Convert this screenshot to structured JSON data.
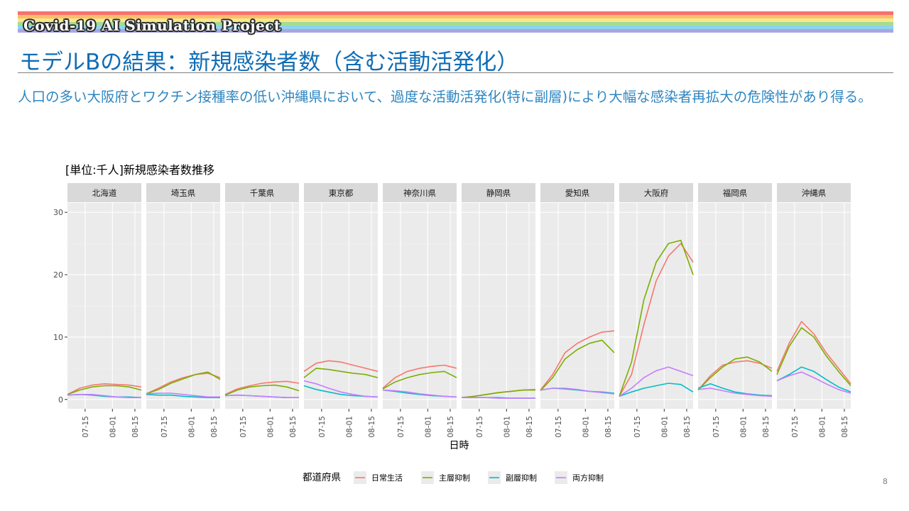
{
  "header": {
    "project_name": "Covid-19 AI Simulation Project",
    "rainbow_colors": [
      "#f8716b",
      "#fbbf6f",
      "#f8e88a",
      "#a6dc93",
      "#8fd3ec",
      "#a7a6e6"
    ]
  },
  "slide": {
    "title": "モデルBの結果：新規感染者数（含む活動活発化）",
    "description": "人口の多い大阪府とワクチン接種率の低い沖縄県において、過度な活動活発化(特に副層)により大幅な感染者再拡大の危険性があり得る。",
    "page_number": "8",
    "title_color": "#0f6db5",
    "text_color": "#2e86c1"
  },
  "chart_data": {
    "type": "line",
    "title": "[単位:千人]新規感染者数推移",
    "xlabel": "日時",
    "ylabel": "",
    "y_ticks": [
      0,
      10,
      20,
      30
    ],
    "ylim": [
      -1.5,
      31.5
    ],
    "x_ticks": [
      "07-15",
      "08-01",
      "08-15"
    ],
    "x_range": [
      "07-04",
      "08-19"
    ],
    "legend_title": "都道府県",
    "legend_position": "bottom",
    "grid": true,
    "series_colors": {
      "日常生活": "#f8766d",
      "主層抑制": "#7cae00",
      "副層抑制": "#00bfc4",
      "両方抑制": "#c77cff"
    },
    "panels": [
      {
        "name": "北海道",
        "series": [
          {
            "name": "日常生活",
            "values": [
              0.8,
              1.8,
              2.3,
              2.5,
              2.4,
              2.3,
              2.0
            ]
          },
          {
            "name": "主層抑制",
            "values": [
              0.8,
              1.5,
              2.0,
              2.2,
              2.2,
              2.0,
              1.5
            ]
          },
          {
            "name": "副層抑制",
            "values": [
              0.7,
              0.8,
              0.7,
              0.5,
              0.4,
              0.4,
              0.3
            ]
          },
          {
            "name": "両方抑制",
            "values": [
              0.7,
              0.8,
              0.8,
              0.6,
              0.4,
              0.3,
              0.3
            ]
          }
        ]
      },
      {
        "name": "埼玉県",
        "series": [
          {
            "name": "日常生活",
            "values": [
              0.9,
              1.8,
              2.8,
              3.5,
              4.0,
              4.2,
              3.5
            ]
          },
          {
            "name": "主層抑制",
            "values": [
              0.9,
              1.6,
              2.6,
              3.3,
              4.0,
              4.4,
              3.2
            ]
          },
          {
            "name": "副層抑制",
            "values": [
              0.8,
              0.7,
              0.7,
              0.5,
              0.4,
              0.3,
              0.3
            ]
          },
          {
            "name": "両方抑制",
            "values": [
              0.9,
              1.0,
              1.0,
              0.8,
              0.6,
              0.4,
              0.4
            ]
          }
        ]
      },
      {
        "name": "千葉県",
        "series": [
          {
            "name": "日常生活",
            "values": [
              0.8,
              1.7,
              2.2,
              2.6,
              2.8,
              2.9,
              2.6
            ]
          },
          {
            "name": "主層抑制",
            "values": [
              0.7,
              1.5,
              2.0,
              2.2,
              2.3,
              2.0,
              1.4
            ]
          },
          {
            "name": "副層抑制",
            "values": [
              0.6,
              0.7,
              0.6,
              0.5,
              0.4,
              0.3,
              0.3
            ]
          },
          {
            "name": "両方抑制",
            "values": [
              0.6,
              0.7,
              0.6,
              0.5,
              0.4,
              0.3,
              0.3
            ]
          }
        ]
      },
      {
        "name": "東京都",
        "series": [
          {
            "name": "日常生活",
            "values": [
              4.5,
              5.8,
              6.2,
              6.0,
              5.5,
              5.0,
              4.5
            ]
          },
          {
            "name": "主層抑制",
            "values": [
              3.5,
              5.0,
              4.8,
              4.5,
              4.2,
              4.0,
              3.5
            ]
          },
          {
            "name": "副層抑制",
            "values": [
              2.2,
              1.6,
              1.2,
              0.8,
              0.6,
              0.5,
              0.4
            ]
          },
          {
            "name": "両方抑制",
            "values": [
              3.0,
              2.5,
              1.8,
              1.2,
              0.8,
              0.5,
              0.4
            ]
          }
        ]
      },
      {
        "name": "神奈川県",
        "series": [
          {
            "name": "日常生活",
            "values": [
              1.8,
              3.5,
              4.5,
              5.0,
              5.3,
              5.5,
              5.0
            ]
          },
          {
            "name": "主層抑制",
            "values": [
              1.7,
              2.8,
              3.5,
              4.0,
              4.3,
              4.5,
              3.5
            ]
          },
          {
            "name": "副層抑制",
            "values": [
              1.5,
              1.3,
              1.0,
              0.8,
              0.6,
              0.5,
              0.4
            ]
          },
          {
            "name": "両方抑制",
            "values": [
              1.5,
              1.4,
              1.2,
              0.9,
              0.7,
              0.5,
              0.4
            ]
          }
        ]
      },
      {
        "name": "静岡県",
        "series": [
          {
            "name": "日常生活",
            "values": [
              0.3,
              0.5,
              0.8,
              1.1,
              1.3,
              1.5,
              1.6
            ]
          },
          {
            "name": "主層抑制",
            "values": [
              0.3,
              0.5,
              0.8,
              1.1,
              1.3,
              1.5,
              1.5
            ]
          },
          {
            "name": "副層抑制",
            "values": [
              0.3,
              0.3,
              0.3,
              0.3,
              0.2,
              0.2,
              0.2
            ]
          },
          {
            "name": "両方抑制",
            "values": [
              0.3,
              0.3,
              0.3,
              0.2,
              0.2,
              0.2,
              0.2
            ]
          }
        ]
      },
      {
        "name": "愛知県",
        "series": [
          {
            "name": "日常生活",
            "values": [
              1.5,
              4.0,
              7.5,
              9.0,
              10.0,
              10.8,
              11.0
            ]
          },
          {
            "name": "主層抑制",
            "values": [
              1.4,
              3.5,
              6.5,
              8.0,
              9.0,
              9.5,
              7.5
            ]
          },
          {
            "name": "副層抑制",
            "values": [
              1.5,
              1.8,
              1.7,
              1.5,
              1.3,
              1.2,
              1.0
            ]
          },
          {
            "name": "両方抑制",
            "values": [
              1.5,
              1.8,
              1.8,
              1.6,
              1.3,
              1.1,
              0.9
            ]
          }
        ]
      },
      {
        "name": "大阪府",
        "series": [
          {
            "name": "日常生活",
            "values": [
              0.5,
              4.0,
              12.0,
              19.0,
              23.0,
              25.0,
              22.0
            ]
          },
          {
            "name": "主層抑制",
            "values": [
              0.5,
              6.0,
              16.0,
              22.0,
              25.0,
              25.5,
              20.0
            ]
          },
          {
            "name": "副層抑制",
            "values": [
              0.5,
              1.2,
              1.8,
              2.2,
              2.6,
              2.4,
              1.2
            ]
          },
          {
            "name": "両方抑制",
            "values": [
              0.5,
              1.8,
              3.5,
              4.6,
              5.2,
              4.5,
              3.8
            ]
          }
        ]
      },
      {
        "name": "福岡県",
        "series": [
          {
            "name": "日常生活",
            "values": [
              1.5,
              3.8,
              5.5,
              6.0,
              6.2,
              5.8,
              5.0
            ]
          },
          {
            "name": "主層抑制",
            "values": [
              1.5,
              3.5,
              5.2,
              6.5,
              6.8,
              6.0,
              4.5
            ]
          },
          {
            "name": "副層抑制",
            "values": [
              1.8,
              2.5,
              1.8,
              1.2,
              0.9,
              0.7,
              0.6
            ]
          },
          {
            "name": "両方抑制",
            "values": [
              1.6,
              1.8,
              1.4,
              1.0,
              0.8,
              0.6,
              0.5
            ]
          }
        ]
      },
      {
        "name": "沖縄県",
        "series": [
          {
            "name": "日常生活",
            "values": [
              4.5,
              9.0,
              12.5,
              10.5,
              7.5,
              5.0,
              2.5
            ]
          },
          {
            "name": "主層抑制",
            "values": [
              4.0,
              8.5,
              11.5,
              10.0,
              7.0,
              4.5,
              2.2
            ]
          },
          {
            "name": "副層抑制",
            "values": [
              3.0,
              4.0,
              5.2,
              4.5,
              3.2,
              2.0,
              1.2
            ]
          },
          {
            "name": "両方抑制",
            "values": [
              3.0,
              3.8,
              4.4,
              3.5,
              2.5,
              1.6,
              1.0
            ]
          }
        ]
      }
    ]
  }
}
